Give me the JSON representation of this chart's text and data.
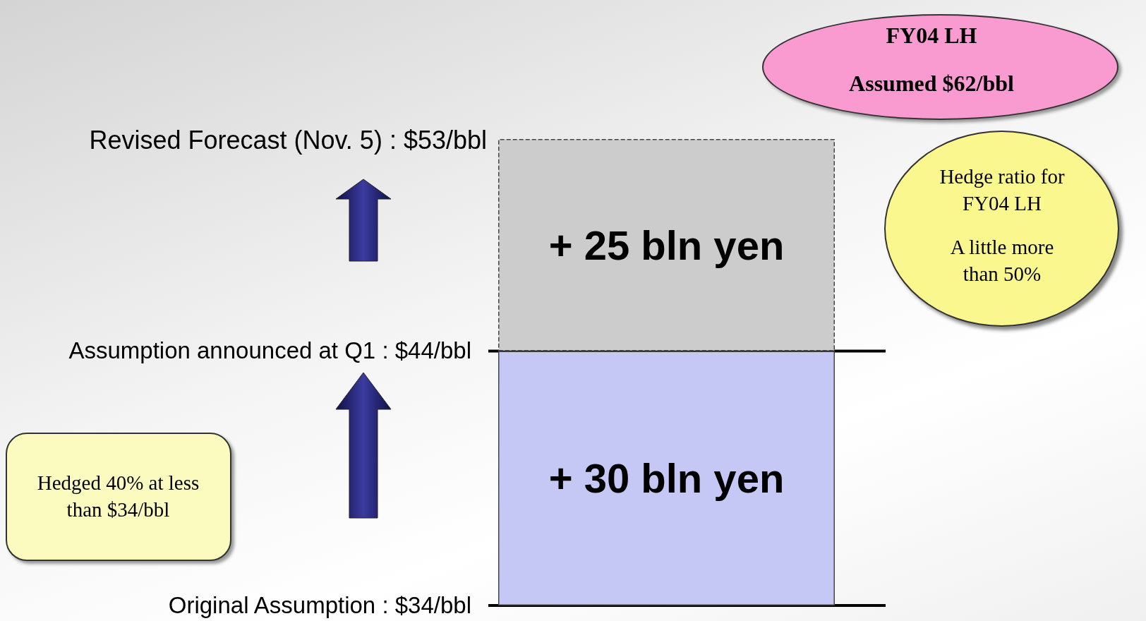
{
  "chart_data": {
    "type": "bar",
    "stacked": true,
    "categories": [
      null
    ],
    "series": [
      {
        "color": "#c5c8f4",
        "values": [
          30
        ],
        "value_labels": [
          "+ 30 bln yen"
        ]
      },
      {
        "color": "#cccccc",
        "values": [
          25
        ],
        "value_labels": [
          "+ 25 bln yen"
        ]
      }
    ],
    "ref_lines": [
      {
        "axis": "y",
        "value": 0,
        "color": "#000000"
      },
      {
        "axis": "y",
        "value": 30,
        "color": "#000000"
      }
    ],
    "annotations": [
      "Original Assumption : $34/bbl",
      "Assumption announced at Q1 :  $44/bbl",
      "Revised Forecast (Nov. 5) : $53/bbl",
      "FY04 LH",
      "Assumed  $62/bbl",
      "Hedge ratio for FY04 LH",
      "A little more than 50%",
      "Hedged 40% at less than $34/bbl"
    ],
    "tick_labels": false,
    "grid": false
  }
}
